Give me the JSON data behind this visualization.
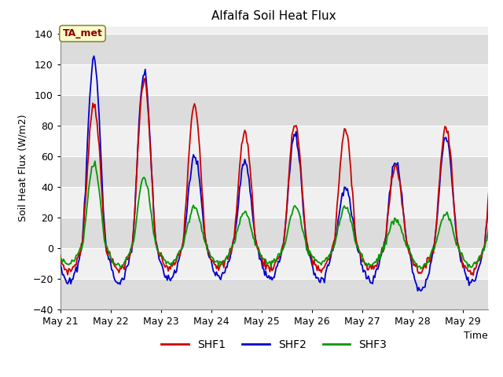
{
  "title": "Alfalfa Soil Heat Flux",
  "xlabel": "Time",
  "ylabel": "Soil Heat Flux (W/m2)",
  "ylim": [
    -40,
    145
  ],
  "yticks": [
    -40,
    -20,
    0,
    20,
    40,
    60,
    80,
    100,
    120,
    140
  ],
  "fig_bg_color": "#ffffff",
  "plot_bg_color": "#f0f0f0",
  "band_colors": [
    "#dcdcdc",
    "#f0f0f0"
  ],
  "line_colors": {
    "SHF1": "#cc0000",
    "SHF2": "#0000cc",
    "SHF3": "#009900"
  },
  "annotation_text": "TA_met",
  "annotation_color": "#880000",
  "annotation_bg": "#ffffcc",
  "annotation_border": "#888844",
  "x_tick_labels": [
    "May 21",
    "May 22",
    "May 23",
    "May 24",
    "May 25",
    "May 26",
    "May 27",
    "May 28",
    "May 29"
  ],
  "n_days": 9,
  "dt_hours": 0.5
}
